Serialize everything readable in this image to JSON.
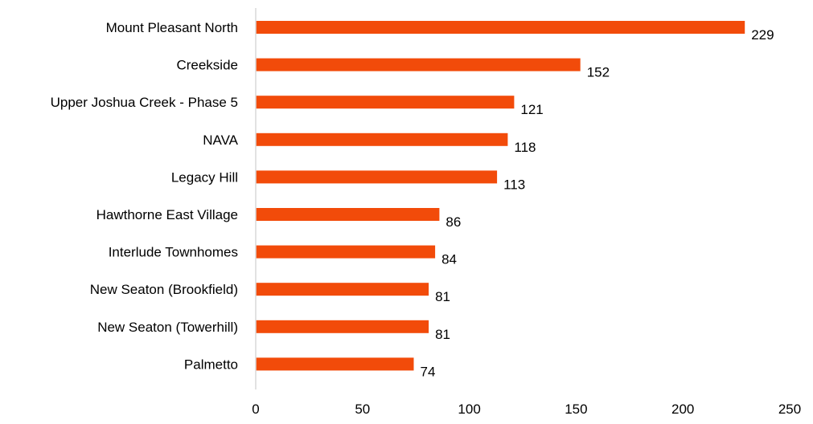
{
  "colors": {
    "bar": "#F24B0A",
    "axis": "#D9D9D9",
    "text": "#000000",
    "background": "#FFFFFF"
  },
  "chart_data": {
    "type": "bar",
    "orientation": "horizontal",
    "categories": [
      "Mount Pleasant North",
      "Creekside",
      "Upper Joshua Creek - Phase 5",
      "NAVA",
      "Legacy Hill",
      "Hawthorne East Village",
      "Interlude Townhomes",
      "New Seaton (Brookfield)",
      "New Seaton (Towerhill)",
      "Palmetto"
    ],
    "values": [
      229,
      152,
      121,
      118,
      113,
      86,
      84,
      81,
      81,
      74
    ],
    "data_labels": [
      "229",
      "152",
      "121",
      "118",
      "113",
      "86",
      "84",
      "81",
      "81",
      "74"
    ],
    "xlim": [
      0,
      250
    ],
    "x_ticks": [
      0,
      50,
      100,
      150,
      200,
      250
    ],
    "x_tick_labels": [
      "0",
      "50",
      "100",
      "150",
      "200",
      "250"
    ],
    "grid": false,
    "legend": "none"
  }
}
